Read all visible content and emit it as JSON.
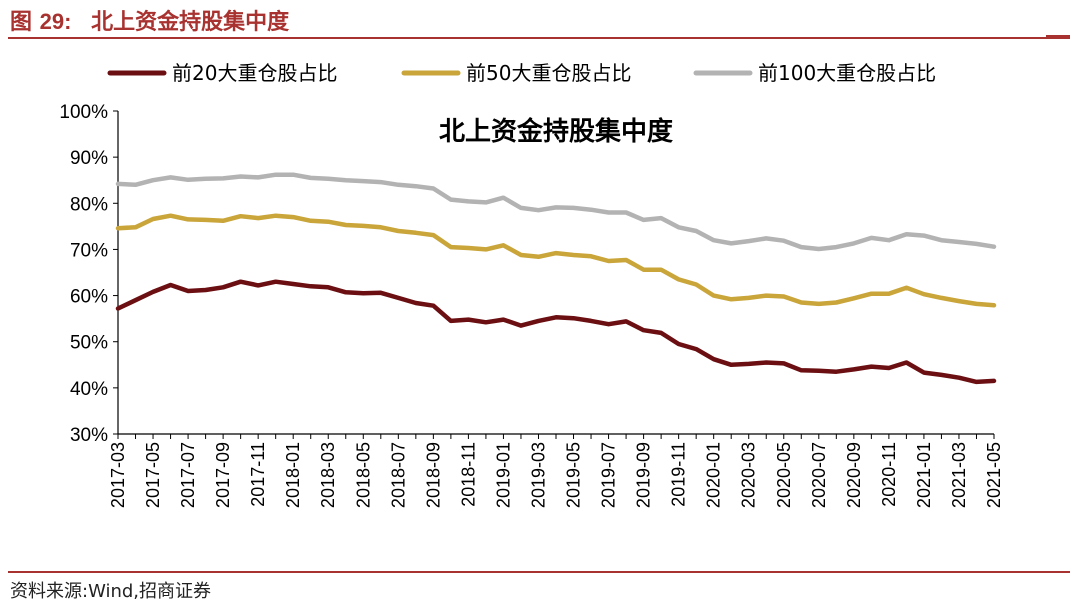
{
  "figure": {
    "label": "图 29:",
    "label_prefix": "图 ",
    "label_num": "29:",
    "title": "北上资金持股集中度"
  },
  "source": "资料来源:Wind,招商证券",
  "colors": {
    "accent": "#a8322f",
    "top20": "#6b0f12",
    "top50": "#c9a53a",
    "top100": "#b3b3b3"
  },
  "chart_data": {
    "type": "line",
    "title": "北上资金持股集中度",
    "xlabel": "",
    "ylabel": "",
    "ylim": [
      0.3,
      1.0
    ],
    "ytick_labels": [
      "100%",
      "90%",
      "80%",
      "70%",
      "60%",
      "50%",
      "40%",
      "30%"
    ],
    "ytick_values": [
      1.0,
      0.9,
      0.8,
      0.7,
      0.6,
      0.5,
      0.4,
      0.3
    ],
    "grid": false,
    "legend_position": "top",
    "x": [
      "2017-03",
      "2017-04",
      "2017-05",
      "2017-06",
      "2017-07",
      "2017-08",
      "2017-09",
      "2017-10",
      "2017-11",
      "2017-12",
      "2018-01",
      "2018-02",
      "2018-03",
      "2018-04",
      "2018-05",
      "2018-06",
      "2018-07",
      "2018-08",
      "2018-09",
      "2018-10",
      "2018-11",
      "2018-12",
      "2019-01",
      "2019-02",
      "2019-03",
      "2019-04",
      "2019-05",
      "2019-06",
      "2019-07",
      "2019-08",
      "2019-09",
      "2019-10",
      "2019-11",
      "2019-12",
      "2020-01",
      "2020-02",
      "2020-03",
      "2020-04",
      "2020-05",
      "2020-06",
      "2020-07",
      "2020-08",
      "2020-09",
      "2020-10",
      "2020-11",
      "2020-12",
      "2021-01",
      "2021-02",
      "2021-03",
      "2021-04",
      "2021-05"
    ],
    "xtick_labels": [
      "2017-03",
      "2017-05",
      "2017-07",
      "2017-09",
      "2017-11",
      "2018-01",
      "2018-03",
      "2018-05",
      "2018-07",
      "2018-09",
      "2018-11",
      "2019-01",
      "2019-03",
      "2019-05",
      "2019-07",
      "2019-09",
      "2019-11",
      "2020-01",
      "2020-03",
      "2020-05",
      "2020-07",
      "2020-09",
      "2020-11",
      "2021-01",
      "2021-03",
      "2021-05"
    ],
    "series": [
      {
        "name": "前20大重仓股占比",
        "key": "top20",
        "values": [
          0.572,
          0.59,
          0.608,
          0.623,
          0.61,
          0.612,
          0.618,
          0.63,
          0.622,
          0.63,
          0.625,
          0.62,
          0.618,
          0.607,
          0.605,
          0.606,
          0.595,
          0.584,
          0.578,
          0.545,
          0.548,
          0.542,
          0.548,
          0.535,
          0.545,
          0.553,
          0.551,
          0.545,
          0.538,
          0.544,
          0.525,
          0.519,
          0.495,
          0.484,
          0.462,
          0.45,
          0.452,
          0.455,
          0.453,
          0.438,
          0.437,
          0.435,
          0.44,
          0.446,
          0.443,
          0.455,
          0.433,
          0.428,
          0.422,
          0.413,
          0.415
        ]
      },
      {
        "name": "前50大重仓股占比",
        "key": "top50",
        "values": [
          0.746,
          0.748,
          0.766,
          0.773,
          0.765,
          0.764,
          0.762,
          0.772,
          0.768,
          0.773,
          0.77,
          0.762,
          0.76,
          0.753,
          0.751,
          0.748,
          0.74,
          0.736,
          0.731,
          0.705,
          0.703,
          0.7,
          0.709,
          0.688,
          0.684,
          0.692,
          0.688,
          0.685,
          0.675,
          0.677,
          0.656,
          0.656,
          0.635,
          0.624,
          0.6,
          0.592,
          0.595,
          0.6,
          0.598,
          0.585,
          0.582,
          0.585,
          0.594,
          0.604,
          0.604,
          0.617,
          0.603,
          0.595,
          0.588,
          0.582,
          0.579
        ]
      },
      {
        "name": "前100大重仓股占比",
        "key": "top100",
        "values": [
          0.842,
          0.84,
          0.85,
          0.856,
          0.851,
          0.853,
          0.854,
          0.858,
          0.856,
          0.862,
          0.862,
          0.855,
          0.853,
          0.85,
          0.848,
          0.846,
          0.84,
          0.837,
          0.832,
          0.808,
          0.804,
          0.802,
          0.812,
          0.79,
          0.785,
          0.791,
          0.79,
          0.786,
          0.78,
          0.78,
          0.764,
          0.768,
          0.748,
          0.74,
          0.72,
          0.713,
          0.718,
          0.724,
          0.719,
          0.705,
          0.701,
          0.705,
          0.713,
          0.725,
          0.72,
          0.733,
          0.73,
          0.72,
          0.716,
          0.712,
          0.706
        ]
      }
    ]
  }
}
